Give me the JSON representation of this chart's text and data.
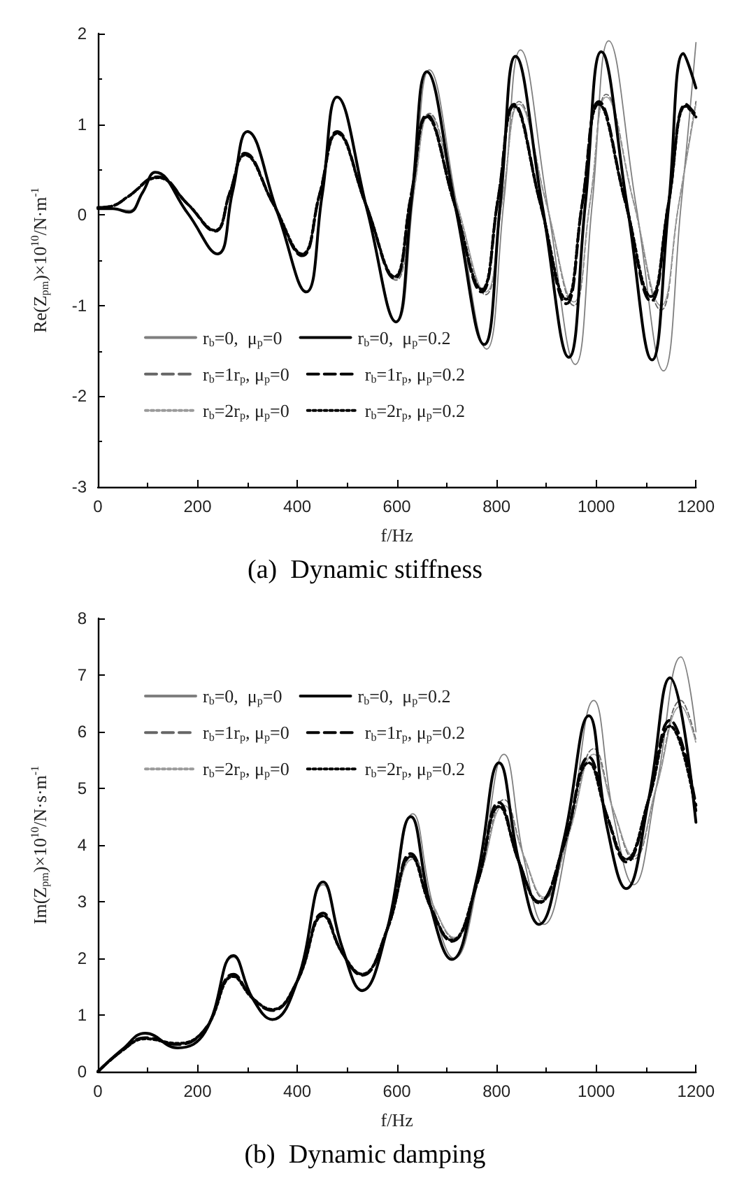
{
  "chart_data": [
    {
      "type": "line",
      "title": "(a)  Dynamic stiffness",
      "xlabel": "f/Hz",
      "ylabel": "Re(Z$_{pm}$)×10$^{10}$/N·m$^{-1}$",
      "xlim": [
        0,
        1200
      ],
      "xticks": [
        0,
        200,
        400,
        600,
        800,
        1000,
        1200
      ],
      "ylim": [
        -3,
        2
      ],
      "yticks": [
        -3,
        -2,
        -1,
        0,
        1,
        2
      ],
      "grid": false,
      "legend": "bottom left",
      "marker": "none",
      "series": [
        {
          "name": "r$_{b}$=0,  μ$_{p}$=0",
          "color": "#7f7f7f",
          "line_style": "solid",
          "x": [
            0,
            30,
            62,
            90,
            115,
            180,
            240,
            270,
            300,
            360,
            418,
            450,
            480,
            540,
            600,
            633,
            665,
            722,
            780,
            815,
            848,
            903,
            958,
            992,
            1025,
            1080,
            1135,
            1170,
            1200
          ],
          "values": [
            0.07,
            0.07,
            0.05,
            0.25,
            0.47,
            0.02,
            -0.43,
            0.25,
            0.92,
            0.03,
            -0.85,
            0.22,
            1.3,
            0.06,
            -1.18,
            0.2,
            1.6,
            0.06,
            -1.48,
            0.17,
            1.82,
            0.08,
            -1.65,
            0.13,
            1.92,
            0.1,
            -1.72,
            0.1,
            1.9
          ]
        },
        {
          "name": "r$_{b}$=0,  μ$_{p}$=0.2",
          "color": "#000000",
          "line_style": "solid",
          "x": [
            0,
            30,
            62,
            90,
            115,
            180,
            240,
            270,
            300,
            360,
            418,
            450,
            480,
            540,
            598,
            630,
            660,
            718,
            775,
            808,
            838,
            892,
            945,
            978,
            1010,
            1062,
            1112,
            1145,
            1175,
            1200
          ],
          "values": [
            0.07,
            0.07,
            0.03,
            0.25,
            0.47,
            0.02,
            -0.43,
            0.25,
            0.92,
            0.03,
            -0.85,
            0.22,
            1.3,
            0.06,
            -1.18,
            0.2,
            1.58,
            0.07,
            -1.43,
            0.16,
            1.75,
            0.09,
            -1.57,
            0.12,
            1.8,
            0.1,
            -1.6,
            0.09,
            1.78,
            1.4
          ]
        },
        {
          "name": "r$_{b}$=1r$_{p}$, μ$_{p}$=0",
          "color": "#666666",
          "line_style": "dashed",
          "x": [
            0,
            30,
            60,
            120,
            180,
            235,
            265,
            295,
            352,
            410,
            445,
            480,
            538,
            598,
            632,
            665,
            720,
            778,
            812,
            845,
            900,
            955,
            988,
            1020,
            1075,
            1130,
            1165,
            1200
          ],
          "values": [
            0.08,
            0.1,
            0.2,
            0.42,
            0.12,
            -0.18,
            0.25,
            0.68,
            0.12,
            -0.45,
            0.23,
            0.92,
            0.11,
            -0.72,
            0.2,
            1.12,
            0.13,
            -0.88,
            0.18,
            1.25,
            0.12,
            -1.0,
            0.16,
            1.33,
            0.14,
            -1.05,
            0.1,
            1.25
          ]
        },
        {
          "name": "r$_{b}$=1r$_{p}$, μ$_{p}$=0.2",
          "color": "#000000",
          "line_style": "dashed",
          "x": [
            0,
            30,
            60,
            120,
            180,
            235,
            265,
            295,
            352,
            410,
            445,
            480,
            538,
            595,
            628,
            660,
            715,
            770,
            803,
            835,
            888,
            940,
            972,
            1005,
            1058,
            1110,
            1145,
            1180,
            1200
          ],
          "values": [
            0.08,
            0.1,
            0.2,
            0.42,
            0.12,
            -0.18,
            0.25,
            0.68,
            0.12,
            -0.45,
            0.23,
            0.92,
            0.11,
            -0.7,
            0.2,
            1.1,
            0.13,
            -0.85,
            0.18,
            1.22,
            0.12,
            -0.98,
            0.13,
            1.25,
            0.15,
            -0.95,
            0.13,
            1.22,
            1.1
          ]
        },
        {
          "name": "r$_{b}$=2r$_{p}$, μ$_{p}$=0",
          "color": "#9a9a9a",
          "line_style": "dotted",
          "x": [
            0,
            30,
            60,
            120,
            180,
            235,
            265,
            295,
            352,
            410,
            445,
            480,
            538,
            598,
            632,
            665,
            720,
            778,
            812,
            845,
            900,
            955,
            988,
            1020,
            1075,
            1130,
            1165,
            1200
          ],
          "values": [
            0.08,
            0.1,
            0.2,
            0.41,
            0.12,
            -0.17,
            0.25,
            0.66,
            0.12,
            -0.43,
            0.23,
            0.9,
            0.11,
            -0.7,
            0.2,
            1.1,
            0.13,
            -0.85,
            0.18,
            1.22,
            0.12,
            -0.96,
            0.16,
            1.3,
            0.14,
            -1.0,
            0.1,
            1.22
          ]
        },
        {
          "name": "r$_{b}$=2r$_{p}$, μ$_{p}$=0.2",
          "color": "#000000",
          "line_style": "dotted",
          "x": [
            0,
            30,
            60,
            120,
            180,
            235,
            265,
            295,
            352,
            410,
            445,
            480,
            538,
            595,
            628,
            660,
            715,
            770,
            803,
            835,
            888,
            940,
            972,
            1005,
            1058,
            1110,
            1145,
            1180,
            1200
          ],
          "values": [
            0.08,
            0.1,
            0.2,
            0.41,
            0.12,
            -0.17,
            0.25,
            0.66,
            0.12,
            -0.43,
            0.23,
            0.9,
            0.11,
            -0.68,
            0.2,
            1.08,
            0.13,
            -0.82,
            0.18,
            1.2,
            0.12,
            -0.93,
            0.13,
            1.22,
            0.15,
            -0.9,
            0.13,
            1.2,
            1.08
          ]
        }
      ]
    },
    {
      "type": "line",
      "title": "(b)  Dynamic damping",
      "xlabel": "f/Hz",
      "ylabel": "Im(Z$_{pm}$)×10$^{10}$/N·s·m$^{-1}$",
      "xlim": [
        0,
        1200
      ],
      "xticks": [
        0,
        200,
        400,
        600,
        800,
        1000,
        1200
      ],
      "ylim": [
        0,
        8
      ],
      "yticks": [
        0,
        1,
        2,
        3,
        4,
        5,
        6,
        7,
        8
      ],
      "grid": false,
      "legend": "top left",
      "marker": "none",
      "series": [
        {
          "name": "r$_{b}$=0,  μ$_{p}$=0",
          "color": "#7f7f7f",
          "line_style": "solid",
          "x": [
            0,
            50,
            95,
            160,
            215,
            272,
            310,
            350,
            400,
            452,
            490,
            530,
            580,
            632,
            672,
            715,
            765,
            815,
            855,
            895,
            945,
            995,
            1035,
            1075,
            1120,
            1170,
            1200
          ],
          "values": [
            0,
            0.4,
            0.68,
            0.42,
            0.7,
            2.02,
            1.3,
            0.92,
            1.6,
            3.3,
            2.2,
            1.45,
            2.5,
            4.55,
            2.95,
            2.0,
            3.45,
            5.6,
            3.75,
            2.6,
            4.2,
            6.55,
            4.5,
            3.3,
            5.0,
            7.32,
            6.0
          ]
        },
        {
          "name": "r$_{b}$=0,  μ$_{p}$=0.2",
          "color": "#000000",
          "line_style": "solid",
          "x": [
            0,
            50,
            95,
            160,
            215,
            272,
            310,
            350,
            400,
            452,
            490,
            530,
            580,
            628,
            668,
            710,
            760,
            805,
            845,
            885,
            935,
            985,
            1022,
            1060,
            1105,
            1148,
            1200
          ],
          "values": [
            0,
            0.4,
            0.68,
            0.42,
            0.7,
            2.05,
            1.3,
            0.92,
            1.6,
            3.35,
            2.2,
            1.43,
            2.5,
            4.5,
            2.9,
            1.98,
            3.4,
            5.45,
            3.7,
            2.6,
            4.1,
            6.28,
            4.3,
            3.23,
            4.8,
            6.95,
            4.4
          ]
        },
        {
          "name": "r$_{b}$=1r$_{p}$, μ$_{p}$=0",
          "color": "#666666",
          "line_style": "dashed",
          "x": [
            0,
            50,
            95,
            160,
            215,
            272,
            310,
            350,
            400,
            452,
            490,
            530,
            580,
            632,
            672,
            715,
            765,
            815,
            855,
            895,
            945,
            995,
            1035,
            1075,
            1120,
            1170,
            1200
          ],
          "values": [
            0,
            0.38,
            0.6,
            0.48,
            0.75,
            1.72,
            1.3,
            1.08,
            1.6,
            2.8,
            2.1,
            1.72,
            2.5,
            3.8,
            2.95,
            2.35,
            3.4,
            4.8,
            3.8,
            3.05,
            4.2,
            5.7,
            4.6,
            3.75,
            5.0,
            6.55,
            5.85
          ]
        },
        {
          "name": "r$_{b}$=1r$_{p}$, μ$_{p}$=0.2",
          "color": "#000000",
          "line_style": "dashed",
          "x": [
            0,
            50,
            95,
            160,
            215,
            272,
            310,
            350,
            400,
            452,
            490,
            530,
            580,
            628,
            668,
            710,
            760,
            805,
            845,
            885,
            935,
            985,
            1022,
            1060,
            1105,
            1148,
            1200
          ],
          "values": [
            0,
            0.38,
            0.6,
            0.48,
            0.75,
            1.72,
            1.3,
            1.08,
            1.6,
            2.8,
            2.1,
            1.7,
            2.5,
            3.85,
            2.9,
            2.3,
            3.3,
            4.75,
            3.7,
            3.0,
            4.0,
            5.55,
            4.5,
            3.7,
            4.8,
            6.2,
            4.7
          ]
        },
        {
          "name": "r$_{b}$=2r$_{p}$, μ$_{p}$=0",
          "color": "#9a9a9a",
          "line_style": "dotted",
          "x": [
            0,
            50,
            95,
            160,
            215,
            272,
            310,
            350,
            400,
            452,
            490,
            530,
            580,
            632,
            672,
            715,
            765,
            815,
            855,
            895,
            945,
            995,
            1035,
            1075,
            1120,
            1170,
            1200
          ],
          "values": [
            0,
            0.38,
            0.58,
            0.5,
            0.75,
            1.68,
            1.3,
            1.1,
            1.6,
            2.75,
            2.1,
            1.74,
            2.5,
            3.75,
            2.95,
            2.37,
            3.4,
            4.7,
            3.8,
            3.08,
            4.2,
            5.6,
            4.6,
            3.8,
            5.0,
            6.45,
            5.8
          ]
        },
        {
          "name": "r$_{b}$=2r$_{p}$, μ$_{p}$=0.2",
          "color": "#000000",
          "line_style": "dotted",
          "x": [
            0,
            50,
            95,
            160,
            215,
            272,
            310,
            350,
            400,
            452,
            490,
            530,
            580,
            628,
            668,
            710,
            760,
            805,
            845,
            885,
            935,
            985,
            1022,
            1060,
            1105,
            1148,
            1200
          ],
          "values": [
            0,
            0.38,
            0.58,
            0.5,
            0.75,
            1.68,
            1.3,
            1.1,
            1.6,
            2.75,
            2.1,
            1.72,
            2.5,
            3.8,
            2.9,
            2.32,
            3.3,
            4.68,
            3.7,
            2.98,
            4.0,
            5.45,
            4.5,
            3.75,
            4.8,
            6.1,
            4.6
          ]
        }
      ]
    }
  ]
}
